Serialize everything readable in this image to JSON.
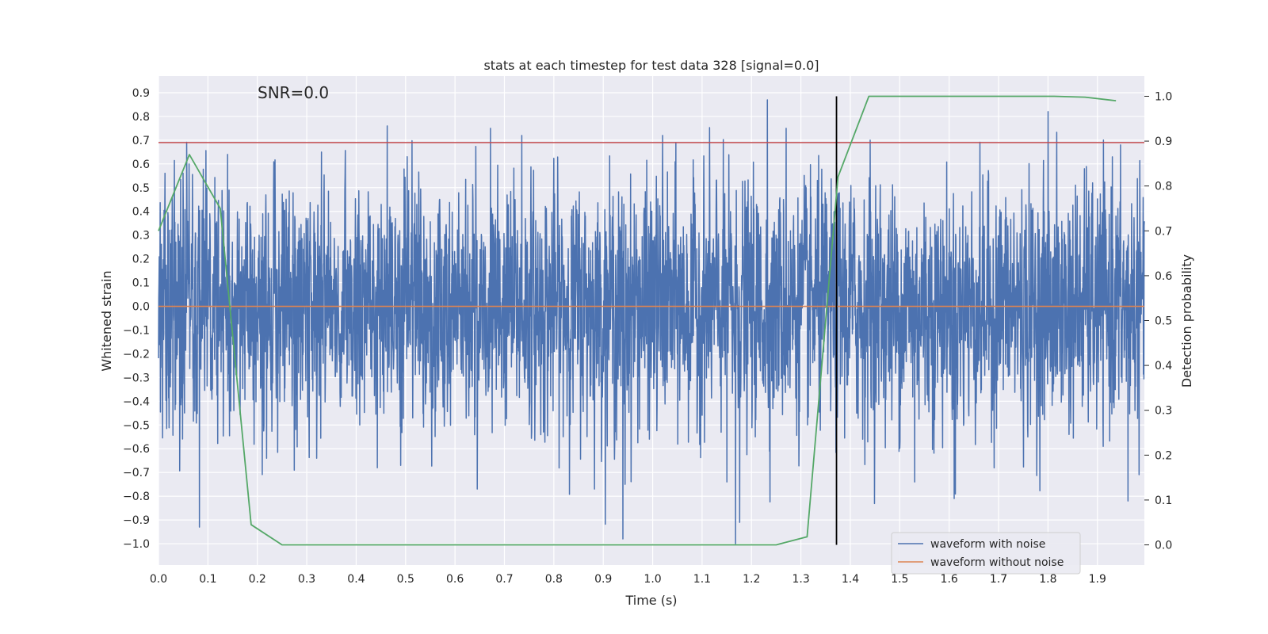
{
  "chart_data": {
    "type": "line",
    "title": "stats at each timestep for test data 328 [signal=0.0]",
    "xlabel": "Time (s)",
    "ylabel": "Whitened strain",
    "y2label": "Detection probability",
    "annotation": "SNR=0.0",
    "xlim": [
      0.0,
      1.995
    ],
    "ylim": [
      -1.09,
      0.97
    ],
    "y2lim": [
      -0.045,
      1.045
    ],
    "xticks": [
      "0.0",
      "0.1",
      "0.2",
      "0.3",
      "0.4",
      "0.5",
      "0.6",
      "0.7",
      "0.8",
      "0.9",
      "1.0",
      "1.1",
      "1.2",
      "1.3",
      "1.4",
      "1.5",
      "1.6",
      "1.7",
      "1.8",
      "1.9"
    ],
    "yticks": [
      "0.9",
      "0.8",
      "0.7",
      "0.6",
      "0.5",
      "0.4",
      "0.3",
      "0.2",
      "0.1",
      "0.0",
      "−0.1",
      "−0.2",
      "−0.3",
      "−0.4",
      "−0.5",
      "−0.6",
      "−0.7",
      "−0.8",
      "−0.9",
      "−1.0"
    ],
    "y2ticks": [
      "1.0",
      "0.9",
      "0.8",
      "0.7",
      "0.6",
      "0.5",
      "0.4",
      "0.3",
      "0.2",
      "0.1",
      "0.0"
    ],
    "grid": true,
    "legend_position": "lower-right",
    "series": [
      {
        "name": "waveform with noise",
        "color": "#4c72b0",
        "axis": "left",
        "noise_sigma": 0.28,
        "noise_clip": [
          -1.0,
          0.88
        ],
        "extremes": [
          {
            "x": 0.083,
            "y": -0.93
          },
          {
            "x": 0.062,
            "y": 0.6
          },
          {
            "x": 0.14,
            "y": 0.64
          },
          {
            "x": 0.275,
            "y": -0.69
          },
          {
            "x": 0.33,
            "y": 0.65
          },
          {
            "x": 0.443,
            "y": -0.68
          },
          {
            "x": 0.463,
            "y": 0.76
          },
          {
            "x": 0.49,
            "y": -0.67
          },
          {
            "x": 0.645,
            "y": -0.77
          },
          {
            "x": 0.672,
            "y": 0.75
          },
          {
            "x": 0.735,
            "y": 0.72
          },
          {
            "x": 0.755,
            "y": -0.53
          },
          {
            "x": 0.94,
            "y": -0.98
          },
          {
            "x": 0.944,
            "y": -0.75
          },
          {
            "x": 1.02,
            "y": 0.72
          },
          {
            "x": 1.15,
            "y": -0.74
          },
          {
            "x": 1.168,
            "y": -1.0
          },
          {
            "x": 1.176,
            "y": -0.91
          },
          {
            "x": 1.232,
            "y": 0.87
          },
          {
            "x": 1.27,
            "y": 0.75
          },
          {
            "x": 1.44,
            "y": 0.7
          },
          {
            "x": 1.53,
            "y": -0.74
          },
          {
            "x": 1.61,
            "y": -0.81
          },
          {
            "x": 1.8,
            "y": 0.82
          },
          {
            "x": 1.93,
            "y": 0.63
          },
          {
            "x": 1.962,
            "y": -0.82
          }
        ]
      },
      {
        "name": "waveform without noise",
        "color": "#dd8452",
        "axis": "left",
        "x": [
          0.0,
          1.995
        ],
        "y": [
          0.0,
          0.0
        ]
      },
      {
        "color": "#55a868",
        "axis": "right",
        "x": [
          0.0,
          0.0625,
          0.125,
          0.1875,
          0.25,
          0.3125,
          1.25,
          1.3125,
          1.375,
          1.4375,
          1.5,
          1.8125,
          1.875,
          1.9375
        ],
        "y": [
          0.7,
          0.87,
          0.75,
          0.045,
          0.0,
          0.0,
          0.0,
          0.018,
          0.82,
          1.0,
          1.0,
          1.0,
          0.998,
          0.99
        ]
      }
    ],
    "threshold_line": {
      "y": 0.69,
      "color": "#c44e52"
    },
    "marker_line": {
      "x": 1.372,
      "color": "#000000",
      "y2_range": [
        0.0,
        1.0
      ]
    }
  }
}
